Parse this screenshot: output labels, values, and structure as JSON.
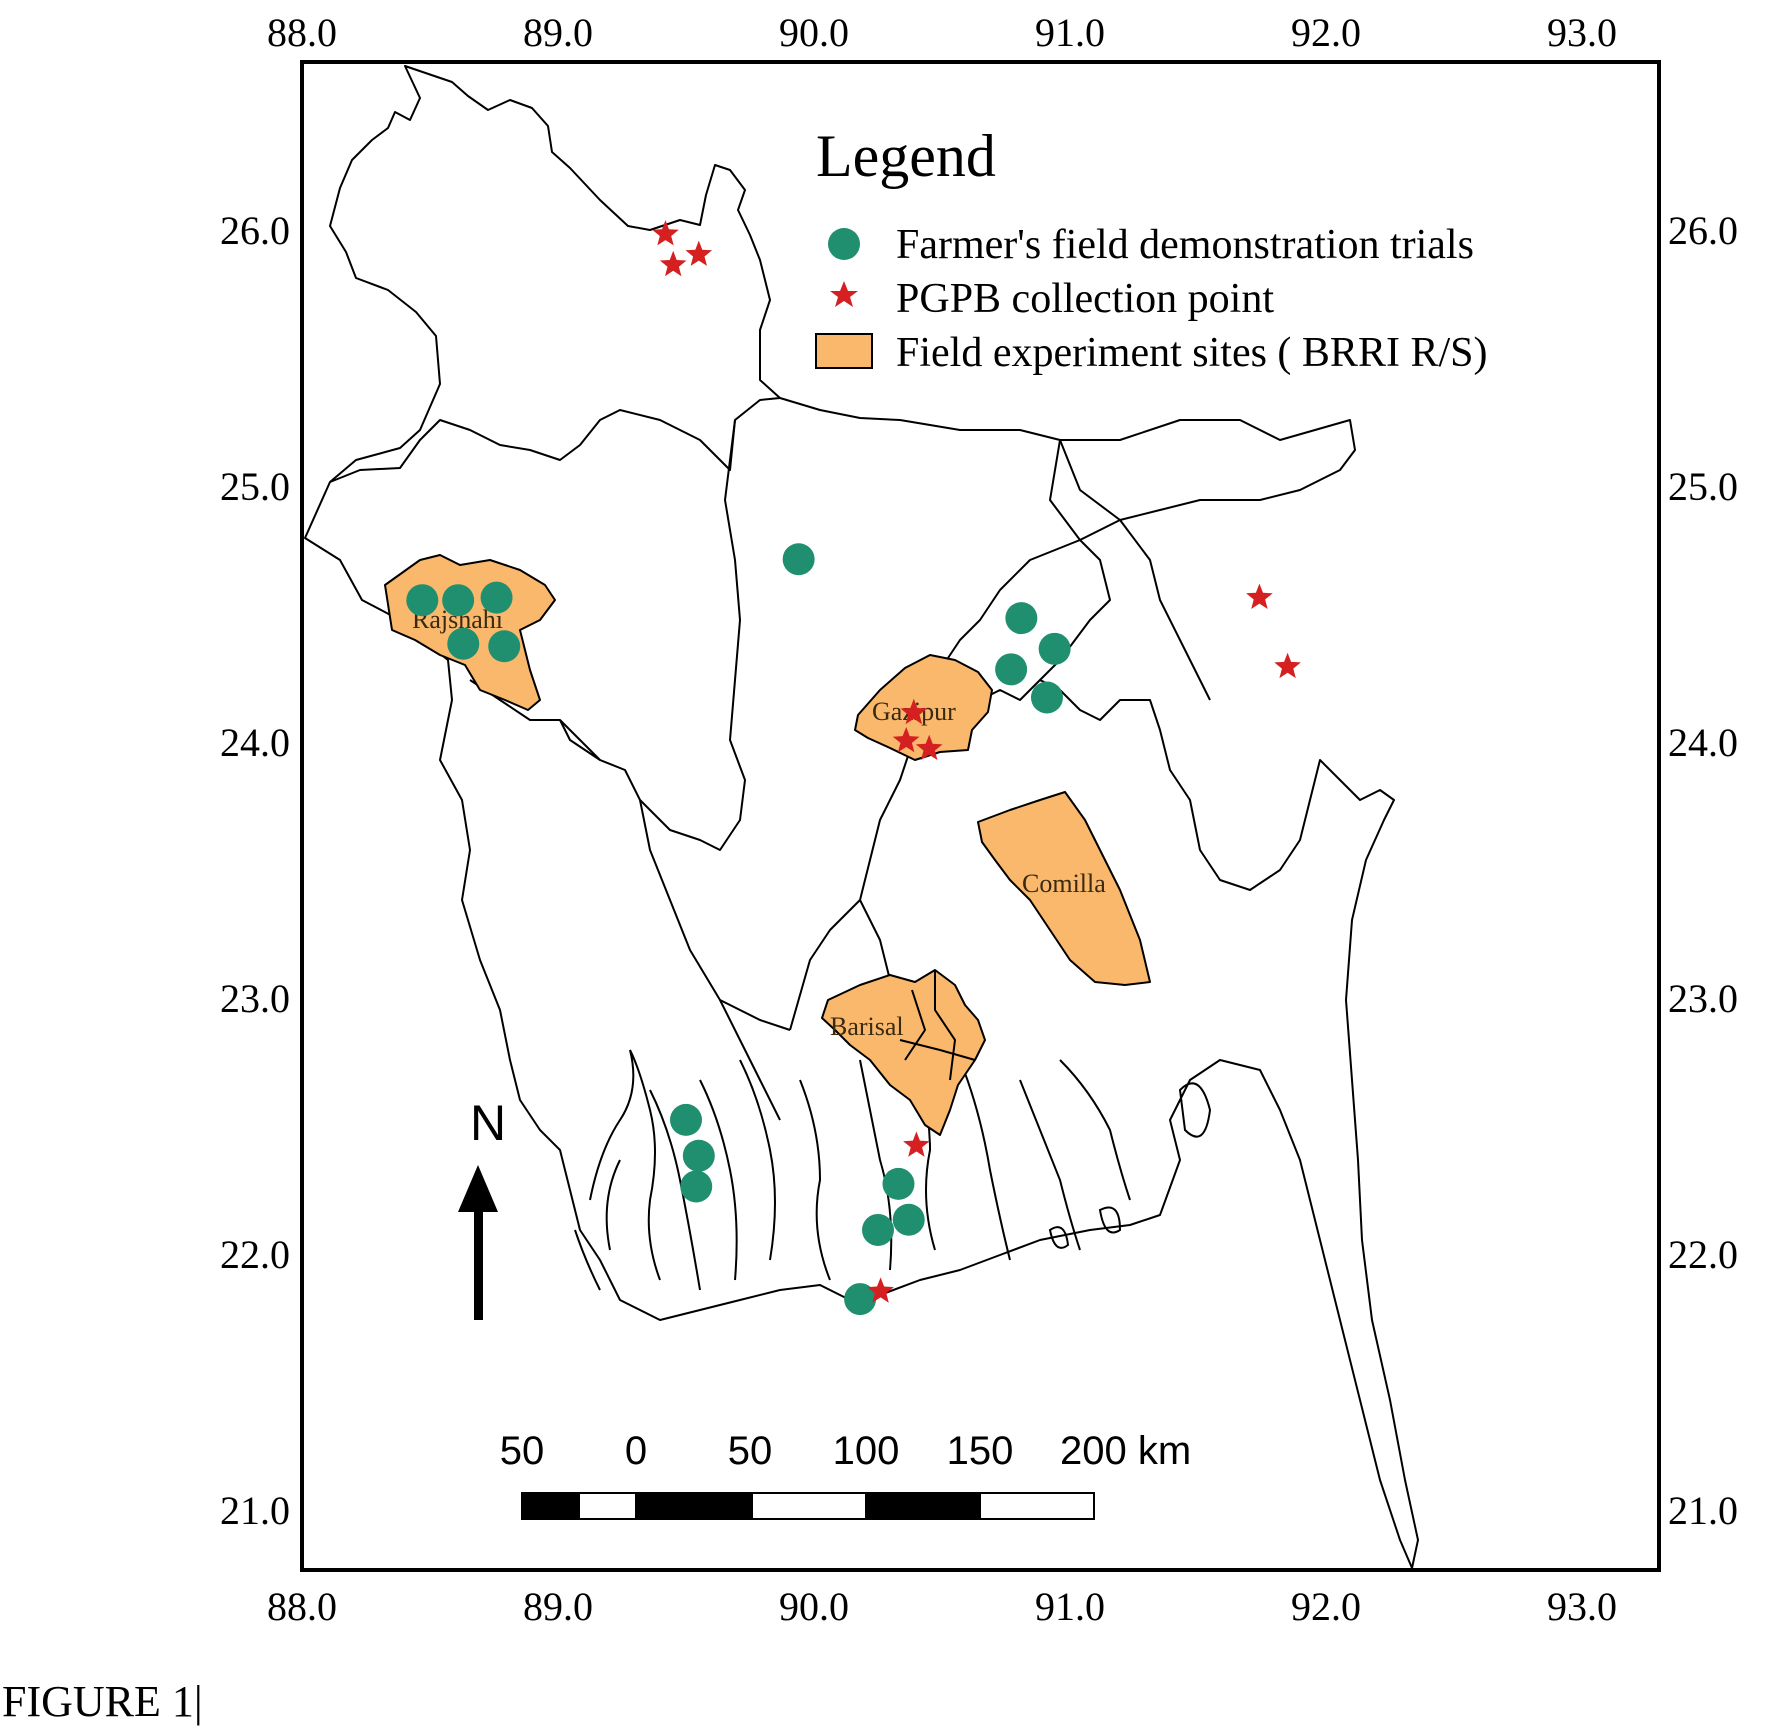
{
  "axes": {
    "x_ticks": [
      "88.0",
      "89.0",
      "90.0",
      "91.0",
      "92.0",
      "93.0"
    ],
    "y_ticks": [
      "26.0",
      "25.0",
      "24.0",
      "23.0",
      "22.0",
      "21.0"
    ]
  },
  "legend": {
    "title": "Legend",
    "items": [
      {
        "label": "Farmer's field demonstration trials",
        "symbol": "circle",
        "color": "#1f8f6f"
      },
      {
        "label": "PGPB collection point",
        "symbol": "star",
        "color": "#d42020"
      },
      {
        "label": "Field experiment sites ( BRRI R/S)",
        "symbol": "polygon",
        "color": "#f9b86b"
      }
    ]
  },
  "sites": [
    {
      "name": "Rajshahi",
      "lon": 88.58,
      "lat": 24.45
    },
    {
      "name": "Gazipur",
      "lon": 90.42,
      "lat": 24.09
    },
    {
      "name": "Comilla",
      "lon": 91.15,
      "lat": 23.45
    },
    {
      "name": "Barisal",
      "lon": 90.2,
      "lat": 22.85
    }
  ],
  "points": {
    "demonstration_trials": [
      {
        "lon": 88.47,
        "lat": 24.55
      },
      {
        "lon": 88.61,
        "lat": 24.55
      },
      {
        "lon": 88.76,
        "lat": 24.56
      },
      {
        "lon": 88.63,
        "lat": 24.38
      },
      {
        "lon": 88.79,
        "lat": 24.37
      },
      {
        "lon": 89.94,
        "lat": 24.71
      },
      {
        "lon": 90.81,
        "lat": 24.48
      },
      {
        "lon": 90.94,
        "lat": 24.36
      },
      {
        "lon": 90.77,
        "lat": 24.28
      },
      {
        "lon": 90.91,
        "lat": 24.17
      },
      {
        "lon": 89.5,
        "lat": 22.52
      },
      {
        "lon": 89.55,
        "lat": 22.38
      },
      {
        "lon": 89.54,
        "lat": 22.26
      },
      {
        "lon": 90.33,
        "lat": 22.27
      },
      {
        "lon": 90.25,
        "lat": 22.09
      },
      {
        "lon": 90.37,
        "lat": 22.13
      },
      {
        "lon": 90.18,
        "lat": 21.82
      }
    ],
    "pgpb_collection": [
      {
        "lon": 89.42,
        "lat": 25.98
      },
      {
        "lon": 89.45,
        "lat": 25.86
      },
      {
        "lon": 89.55,
        "lat": 25.9
      },
      {
        "lon": 90.39,
        "lat": 24.11
      },
      {
        "lon": 90.36,
        "lat": 24.0
      },
      {
        "lon": 90.45,
        "lat": 23.97
      },
      {
        "lon": 91.74,
        "lat": 24.56
      },
      {
        "lon": 91.85,
        "lat": 24.29
      },
      {
        "lon": 90.4,
        "lat": 22.42
      },
      {
        "lon": 90.26,
        "lat": 21.85
      }
    ]
  },
  "north_arrow": {
    "label": "N"
  },
  "scale_bar": {
    "labels": [
      "50",
      "0",
      "50",
      "100",
      "150",
      "200 km"
    ]
  },
  "caption": "FIGURE 1|"
}
